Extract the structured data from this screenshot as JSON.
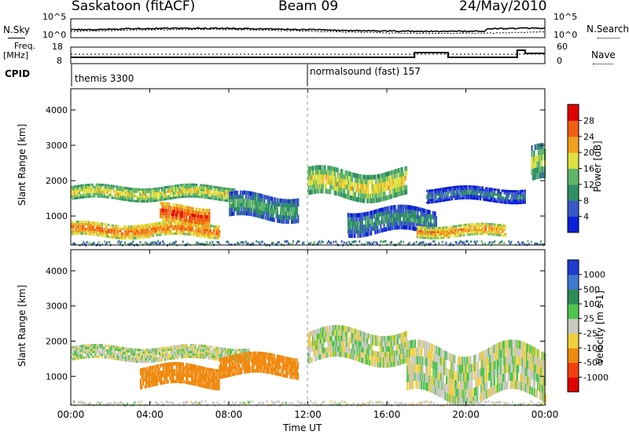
{
  "header": {
    "station": "Saskatoon (fitACF)",
    "beam": "Beam 09",
    "date": "24/May/2010"
  },
  "sky_panel": {
    "left_label": "N.Sky",
    "right_label": "N.Search",
    "tick_top": "10^5",
    "tick_bottom": "10^0"
  },
  "freq_panel": {
    "left_label_1": "Freq.",
    "left_label_2": "[MHz]",
    "right_label": "Nave",
    "left_tick_top": "18",
    "left_tick_bottom": "8",
    "right_tick_top": "60",
    "right_tick_bottom": "0"
  },
  "cpid_panel": {
    "label": "CPID",
    "modes": [
      {
        "name": "themis 3300",
        "start": "00:00"
      },
      {
        "name": "normalsound (fast) 157",
        "start": "12:00"
      }
    ]
  },
  "chart_data": [
    {
      "type": "heatmap",
      "title": "Power",
      "ylabel": "Slant Range [km]",
      "yticks": [
        1000,
        2000,
        3000,
        4000
      ],
      "ylim": [
        180,
        4600
      ],
      "xlim_hours": [
        0,
        24
      ],
      "colorbar": {
        "label": "Power [dB]",
        "ticks": [
          4,
          8,
          12,
          16,
          20,
          24,
          28
        ],
        "range": [
          0,
          32
        ],
        "colors": [
          "#0a1fd8",
          "#3a57c8",
          "#2f8f64",
          "#5fb56b",
          "#e0e040",
          "#f0a020",
          "#f06010",
          "#e00000"
        ]
      },
      "echo_regions": [
        {
          "t": [
            0.0,
            8.3
          ],
          "r": [
            1450,
            1850
          ],
          "power_db": 20
        },
        {
          "t": [
            0.0,
            7.5
          ],
          "r": [
            400,
            800
          ],
          "power_db": 26
        },
        {
          "t": [
            4.5,
            7.0
          ],
          "r": [
            750,
            1300
          ],
          "power_db": 29
        },
        {
          "t": [
            8.0,
            11.5
          ],
          "r": [
            900,
            1600
          ],
          "power_db": 14
        },
        {
          "t": [
            12.0,
            17.0
          ],
          "r": [
            1500,
            2300
          ],
          "power_db": 20
        },
        {
          "t": [
            14.0,
            18.5
          ],
          "r": [
            500,
            1200
          ],
          "power_db": 12
        },
        {
          "t": [
            17.5,
            22.0
          ],
          "r": [
            400,
            750
          ],
          "power_db": 24
        },
        {
          "t": [
            18.0,
            23.0
          ],
          "r": [
            1400,
            1800
          ],
          "power_db": 10
        },
        {
          "t": [
            23.3,
            24.0
          ],
          "r": [
            1900,
            2900
          ],
          "power_db": 18
        }
      ]
    },
    {
      "type": "heatmap",
      "title": "Velocity",
      "ylabel": "Slant Range [km]",
      "xlabel": "Time UT",
      "xticks": [
        "00:00",
        "04:00",
        "08:00",
        "12:00",
        "16:00",
        "20:00",
        "00:00"
      ],
      "yticks": [
        1000,
        2000,
        3000,
        4000
      ],
      "ylim": [
        180,
        4600
      ],
      "xlim_hours": [
        0,
        24
      ],
      "colorbar": {
        "label": "Velocity [m s-1]",
        "ticks": [
          1000,
          500,
          100,
          25,
          -25,
          -100,
          -500,
          -1000
        ],
        "colors": [
          "#1e3cd0",
          "#3f7ad0",
          "#2e8b57",
          "#4fc44f",
          "#c8c8c0",
          "#f0d040",
          "#f08a10",
          "#f04010",
          "#e00000"
        ]
      },
      "echo_regions": [
        {
          "t": [
            0.0,
            9.0
          ],
          "r": [
            1450,
            1850
          ],
          "velocity": 0
        },
        {
          "t": [
            3.5,
            7.5
          ],
          "r": [
            700,
            1300
          ],
          "velocity": -300
        },
        {
          "t": [
            7.5,
            11.5
          ],
          "r": [
            1000,
            1600
          ],
          "velocity": -400
        },
        {
          "t": [
            12.0,
            17.0
          ],
          "r": [
            1400,
            2300
          ],
          "velocity": 0
        },
        {
          "t": [
            17.0,
            24.0
          ],
          "r": [
            400,
            1800
          ],
          "velocity": 0
        }
      ]
    }
  ]
}
